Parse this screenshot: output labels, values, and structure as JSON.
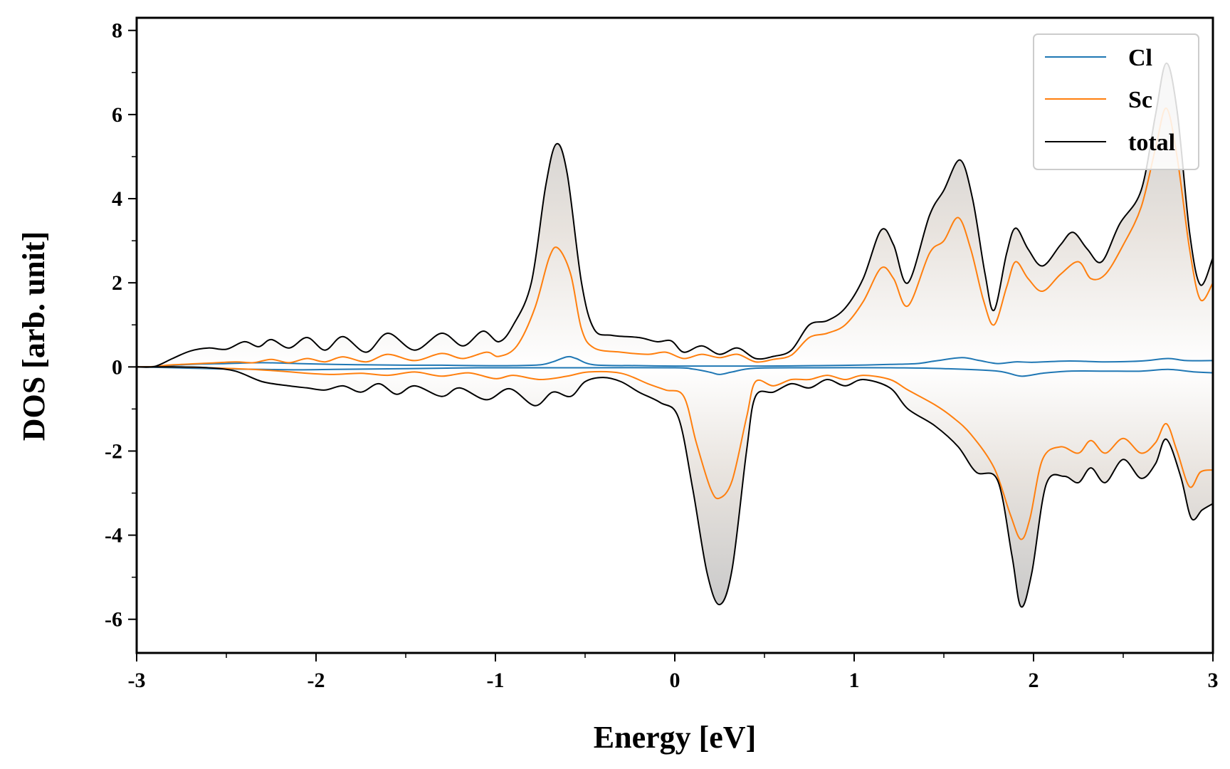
{
  "chart_data": {
    "type": "line",
    "xlabel": "Energy [eV]",
    "ylabel": "DOS [arb. unit]",
    "xlim": [
      -3,
      3
    ],
    "ylim": [
      -6.8,
      8.3
    ],
    "xticks": [
      -3,
      -2,
      -1,
      0,
      1,
      2,
      3
    ],
    "xtick_labels": [
      "-3",
      "-2",
      "-1",
      "0",
      "1",
      "2",
      "3"
    ],
    "yticks": [
      -6,
      -4,
      -2,
      0,
      2,
      4,
      6,
      8
    ],
    "ytick_labels": [
      "-6",
      "-4",
      "-2",
      "0",
      "2",
      "4",
      "6",
      "8"
    ],
    "grid": false,
    "legend_position": "top-right",
    "fill_between_total_and_zero": true,
    "series": [
      {
        "name": "Cl",
        "color": "#1f77b4",
        "up": [
          [
            -3,
            0
          ],
          [
            -2.9,
            0.01
          ],
          [
            -2.7,
            0.06
          ],
          [
            -2.5,
            0.08
          ],
          [
            -2.3,
            0.1
          ],
          [
            -2.1,
            0.08
          ],
          [
            -1.9,
            0.06
          ],
          [
            -1.7,
            0.05
          ],
          [
            -1.5,
            0.04
          ],
          [
            -1.3,
            0.04
          ],
          [
            -1.1,
            0.03
          ],
          [
            -0.9,
            0.03
          ],
          [
            -0.75,
            0.05
          ],
          [
            -0.68,
            0.12
          ],
          [
            -0.6,
            0.24
          ],
          [
            -0.55,
            0.2
          ],
          [
            -0.45,
            0.05
          ],
          [
            -0.2,
            0.03
          ],
          [
            0,
            0.02
          ],
          [
            0.3,
            0.02
          ],
          [
            0.5,
            0.02
          ],
          [
            0.8,
            0.03
          ],
          [
            1.0,
            0.04
          ],
          [
            1.2,
            0.06
          ],
          [
            1.35,
            0.08
          ],
          [
            1.45,
            0.14
          ],
          [
            1.6,
            0.22
          ],
          [
            1.7,
            0.15
          ],
          [
            1.8,
            0.08
          ],
          [
            1.9,
            0.12
          ],
          [
            2.0,
            0.11
          ],
          [
            2.2,
            0.14
          ],
          [
            2.4,
            0.12
          ],
          [
            2.6,
            0.14
          ],
          [
            2.75,
            0.2
          ],
          [
            2.85,
            0.15
          ],
          [
            3.0,
            0.15
          ]
        ],
        "down": [
          [
            -3,
            0
          ],
          [
            -2.9,
            -0.01
          ],
          [
            -2.7,
            -0.03
          ],
          [
            -2.5,
            -0.05
          ],
          [
            -2.3,
            -0.06
          ],
          [
            -2.1,
            -0.07
          ],
          [
            -1.9,
            -0.06
          ],
          [
            -1.7,
            -0.05
          ],
          [
            -1.5,
            -0.04
          ],
          [
            -1.3,
            -0.03
          ],
          [
            -1.1,
            -0.02
          ],
          [
            -0.9,
            -0.02
          ],
          [
            -0.5,
            -0.02
          ],
          [
            0,
            -0.02
          ],
          [
            0.1,
            -0.05
          ],
          [
            0.2,
            -0.13
          ],
          [
            0.25,
            -0.18
          ],
          [
            0.32,
            -0.12
          ],
          [
            0.45,
            -0.03
          ],
          [
            0.8,
            -0.02
          ],
          [
            1.2,
            -0.02
          ],
          [
            1.5,
            -0.04
          ],
          [
            1.8,
            -0.1
          ],
          [
            1.93,
            -0.22
          ],
          [
            2.05,
            -0.15
          ],
          [
            2.2,
            -0.1
          ],
          [
            2.4,
            -0.1
          ],
          [
            2.6,
            -0.1
          ],
          [
            2.75,
            -0.06
          ],
          [
            2.9,
            -0.12
          ],
          [
            3.0,
            -0.14
          ]
        ]
      },
      {
        "name": "Sc",
        "color": "#ff7f0e",
        "up": [
          [
            -3,
            0
          ],
          [
            -2.9,
            0.01
          ],
          [
            -2.8,
            0.05
          ],
          [
            -2.6,
            0.09
          ],
          [
            -2.45,
            0.12
          ],
          [
            -2.35,
            0.1
          ],
          [
            -2.25,
            0.18
          ],
          [
            -2.15,
            0.1
          ],
          [
            -2.05,
            0.2
          ],
          [
            -1.95,
            0.12
          ],
          [
            -1.85,
            0.24
          ],
          [
            -1.72,
            0.12
          ],
          [
            -1.6,
            0.3
          ],
          [
            -1.45,
            0.15
          ],
          [
            -1.3,
            0.32
          ],
          [
            -1.18,
            0.2
          ],
          [
            -1.05,
            0.35
          ],
          [
            -0.98,
            0.25
          ],
          [
            -0.88,
            0.5
          ],
          [
            -0.78,
            1.4
          ],
          [
            -0.7,
            2.6
          ],
          [
            -0.65,
            2.82
          ],
          [
            -0.58,
            2.2
          ],
          [
            -0.52,
            0.9
          ],
          [
            -0.45,
            0.45
          ],
          [
            -0.3,
            0.35
          ],
          [
            -0.15,
            0.3
          ],
          [
            -0.05,
            0.35
          ],
          [
            0.05,
            0.2
          ],
          [
            0.15,
            0.3
          ],
          [
            0.25,
            0.22
          ],
          [
            0.35,
            0.3
          ],
          [
            0.45,
            0.12
          ],
          [
            0.55,
            0.18
          ],
          [
            0.65,
            0.28
          ],
          [
            0.75,
            0.7
          ],
          [
            0.85,
            0.8
          ],
          [
            0.95,
            1.0
          ],
          [
            1.05,
            1.55
          ],
          [
            1.15,
            2.35
          ],
          [
            1.22,
            2.1
          ],
          [
            1.3,
            1.45
          ],
          [
            1.42,
            2.7
          ],
          [
            1.5,
            3.0
          ],
          [
            1.58,
            3.55
          ],
          [
            1.65,
            2.8
          ],
          [
            1.72,
            1.6
          ],
          [
            1.78,
            1.0
          ],
          [
            1.85,
            1.9
          ],
          [
            1.9,
            2.5
          ],
          [
            1.97,
            2.1
          ],
          [
            2.05,
            1.8
          ],
          [
            2.15,
            2.2
          ],
          [
            2.25,
            2.5
          ],
          [
            2.32,
            2.1
          ],
          [
            2.4,
            2.2
          ],
          [
            2.5,
            2.9
          ],
          [
            2.6,
            3.8
          ],
          [
            2.68,
            5.2
          ],
          [
            2.74,
            6.15
          ],
          [
            2.8,
            5.0
          ],
          [
            2.87,
            2.8
          ],
          [
            2.93,
            1.6
          ],
          [
            3.0,
            2.0
          ]
        ],
        "down": [
          [
            -3,
            0
          ],
          [
            -2.8,
            0
          ],
          [
            -2.6,
            -0.02
          ],
          [
            -2.4,
            -0.05
          ],
          [
            -2.2,
            -0.1
          ],
          [
            -2.05,
            -0.15
          ],
          [
            -1.9,
            -0.18
          ],
          [
            -1.75,
            -0.15
          ],
          [
            -1.6,
            -0.2
          ],
          [
            -1.45,
            -0.12
          ],
          [
            -1.3,
            -0.22
          ],
          [
            -1.15,
            -0.14
          ],
          [
            -1.0,
            -0.28
          ],
          [
            -0.9,
            -0.2
          ],
          [
            -0.75,
            -0.3
          ],
          [
            -0.6,
            -0.22
          ],
          [
            -0.48,
            -0.12
          ],
          [
            -0.3,
            -0.15
          ],
          [
            -0.15,
            -0.4
          ],
          [
            -0.05,
            -0.55
          ],
          [
            0.05,
            -0.7
          ],
          [
            0.12,
            -1.8
          ],
          [
            0.2,
            -2.9
          ],
          [
            0.25,
            -3.12
          ],
          [
            0.32,
            -2.7
          ],
          [
            0.4,
            -1.2
          ],
          [
            0.45,
            -0.35
          ],
          [
            0.55,
            -0.45
          ],
          [
            0.65,
            -0.3
          ],
          [
            0.75,
            -0.3
          ],
          [
            0.85,
            -0.2
          ],
          [
            0.95,
            -0.3
          ],
          [
            1.05,
            -0.2
          ],
          [
            1.2,
            -0.3
          ],
          [
            1.3,
            -0.55
          ],
          [
            1.45,
            -0.9
          ],
          [
            1.55,
            -1.2
          ],
          [
            1.65,
            -1.6
          ],
          [
            1.78,
            -2.4
          ],
          [
            1.87,
            -3.5
          ],
          [
            1.93,
            -4.1
          ],
          [
            1.98,
            -3.6
          ],
          [
            2.05,
            -2.2
          ],
          [
            2.15,
            -1.9
          ],
          [
            2.25,
            -2.05
          ],
          [
            2.32,
            -1.75
          ],
          [
            2.4,
            -2.05
          ],
          [
            2.5,
            -1.7
          ],
          [
            2.6,
            -2.05
          ],
          [
            2.68,
            -1.8
          ],
          [
            2.74,
            -1.35
          ],
          [
            2.8,
            -2.0
          ],
          [
            2.87,
            -2.85
          ],
          [
            2.93,
            -2.5
          ],
          [
            3.0,
            -2.45
          ]
        ]
      },
      {
        "name": "total",
        "color": "#000000",
        "up": [
          [
            -3,
            0
          ],
          [
            -2.9,
            0.01
          ],
          [
            -2.8,
            0.2
          ],
          [
            -2.7,
            0.38
          ],
          [
            -2.6,
            0.45
          ],
          [
            -2.5,
            0.42
          ],
          [
            -2.4,
            0.6
          ],
          [
            -2.32,
            0.48
          ],
          [
            -2.25,
            0.65
          ],
          [
            -2.15,
            0.45
          ],
          [
            -2.05,
            0.7
          ],
          [
            -1.95,
            0.4
          ],
          [
            -1.85,
            0.72
          ],
          [
            -1.72,
            0.35
          ],
          [
            -1.6,
            0.8
          ],
          [
            -1.45,
            0.4
          ],
          [
            -1.3,
            0.8
          ],
          [
            -1.18,
            0.5
          ],
          [
            -1.07,
            0.85
          ],
          [
            -0.98,
            0.6
          ],
          [
            -0.9,
            1.0
          ],
          [
            -0.8,
            2.0
          ],
          [
            -0.72,
            4.3
          ],
          [
            -0.66,
            5.3
          ],
          [
            -0.6,
            4.6
          ],
          [
            -0.52,
            2.0
          ],
          [
            -0.45,
            0.9
          ],
          [
            -0.35,
            0.75
          ],
          [
            -0.2,
            0.7
          ],
          [
            -0.1,
            0.6
          ],
          [
            -0.02,
            0.62
          ],
          [
            0.05,
            0.35
          ],
          [
            0.15,
            0.5
          ],
          [
            0.25,
            0.3
          ],
          [
            0.35,
            0.45
          ],
          [
            0.45,
            0.2
          ],
          [
            0.55,
            0.25
          ],
          [
            0.65,
            0.4
          ],
          [
            0.75,
            1.0
          ],
          [
            0.85,
            1.1
          ],
          [
            0.95,
            1.4
          ],
          [
            1.05,
            2.1
          ],
          [
            1.15,
            3.25
          ],
          [
            1.22,
            2.9
          ],
          [
            1.3,
            2.0
          ],
          [
            1.42,
            3.6
          ],
          [
            1.5,
            4.2
          ],
          [
            1.59,
            4.92
          ],
          [
            1.66,
            4.0
          ],
          [
            1.73,
            2.2
          ],
          [
            1.78,
            1.35
          ],
          [
            1.85,
            2.7
          ],
          [
            1.9,
            3.3
          ],
          [
            1.97,
            2.8
          ],
          [
            2.05,
            2.4
          ],
          [
            2.15,
            2.9
          ],
          [
            2.22,
            3.2
          ],
          [
            2.3,
            2.8
          ],
          [
            2.38,
            2.5
          ],
          [
            2.48,
            3.4
          ],
          [
            2.6,
            4.2
          ],
          [
            2.68,
            6.0
          ],
          [
            2.74,
            7.22
          ],
          [
            2.8,
            6.1
          ],
          [
            2.87,
            3.2
          ],
          [
            2.93,
            1.95
          ],
          [
            3.0,
            2.6
          ]
        ],
        "down": [
          [
            -3,
            0
          ],
          [
            -2.8,
            0
          ],
          [
            -2.6,
            -0.02
          ],
          [
            -2.45,
            -0.1
          ],
          [
            -2.3,
            -0.35
          ],
          [
            -2.15,
            -0.45
          ],
          [
            -2.05,
            -0.5
          ],
          [
            -1.95,
            -0.55
          ],
          [
            -1.85,
            -0.45
          ],
          [
            -1.75,
            -0.6
          ],
          [
            -1.65,
            -0.4
          ],
          [
            -1.55,
            -0.65
          ],
          [
            -1.45,
            -0.45
          ],
          [
            -1.3,
            -0.7
          ],
          [
            -1.2,
            -0.5
          ],
          [
            -1.05,
            -0.78
          ],
          [
            -0.92,
            -0.52
          ],
          [
            -0.78,
            -0.92
          ],
          [
            -0.68,
            -0.6
          ],
          [
            -0.58,
            -0.7
          ],
          [
            -0.5,
            -0.35
          ],
          [
            -0.4,
            -0.25
          ],
          [
            -0.3,
            -0.35
          ],
          [
            -0.2,
            -0.6
          ],
          [
            -0.08,
            -0.85
          ],
          [
            0.02,
            -1.2
          ],
          [
            0.1,
            -2.9
          ],
          [
            0.18,
            -4.9
          ],
          [
            0.25,
            -5.65
          ],
          [
            0.32,
            -4.8
          ],
          [
            0.4,
            -2.0
          ],
          [
            0.45,
            -0.7
          ],
          [
            0.55,
            -0.6
          ],
          [
            0.65,
            -0.4
          ],
          [
            0.75,
            -0.5
          ],
          [
            0.85,
            -0.3
          ],
          [
            0.95,
            -0.45
          ],
          [
            1.05,
            -0.3
          ],
          [
            1.2,
            -0.5
          ],
          [
            1.3,
            -1.0
          ],
          [
            1.45,
            -1.4
          ],
          [
            1.58,
            -1.9
          ],
          [
            1.68,
            -2.5
          ],
          [
            1.8,
            -2.7
          ],
          [
            1.88,
            -4.5
          ],
          [
            1.93,
            -5.7
          ],
          [
            1.99,
            -4.9
          ],
          [
            2.07,
            -2.8
          ],
          [
            2.17,
            -2.6
          ],
          [
            2.25,
            -2.75
          ],
          [
            2.32,
            -2.4
          ],
          [
            2.4,
            -2.75
          ],
          [
            2.5,
            -2.2
          ],
          [
            2.6,
            -2.65
          ],
          [
            2.68,
            -2.3
          ],
          [
            2.74,
            -1.72
          ],
          [
            2.82,
            -2.6
          ],
          [
            2.88,
            -3.6
          ],
          [
            2.94,
            -3.4
          ],
          [
            3.0,
            -3.25
          ]
        ]
      }
    ]
  }
}
